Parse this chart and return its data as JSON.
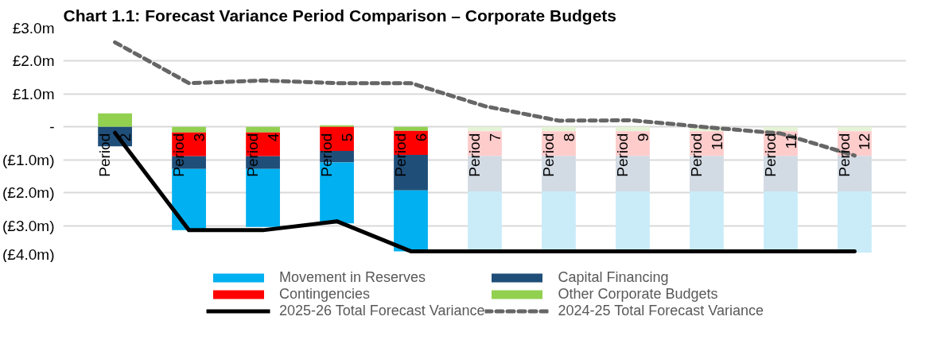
{
  "chart_data": {
    "type": "bar",
    "stacked": true,
    "title": "Chart 1.1: Forecast Variance Period Comparison – Corporate Budgets",
    "categories": [
      "Period 2",
      "Period 3",
      "Period 4",
      "Period 5",
      "Period 6",
      "Period 7",
      "Period 8",
      "Period 9",
      "Period 10",
      "Period 11",
      "Period 12"
    ],
    "series": [
      {
        "name": "Other Corporate Budgets",
        "color": "#92d050",
        "colors": [
          "#92d050",
          "#92d050",
          "#92d050",
          "#92d050",
          "#92d050",
          "#e5f3d6",
          "#e5f3d6",
          "#e5f3d6",
          "#e5f3d6",
          "#e5f3d6",
          "#e5f3d6"
        ],
        "values": [
          0.41,
          -0.17,
          -0.17,
          0.05,
          -0.12,
          -0.13,
          -0.13,
          -0.13,
          -0.13,
          -0.13,
          -0.13
        ]
      },
      {
        "name": "Contingencies",
        "color": "#ff0000",
        "colors": [
          "#ff0000",
          "#ff0000",
          "#ff0000",
          "#ff0000",
          "#ff0000",
          "#ffcccc",
          "#ffcccc",
          "#ffcccc",
          "#ffcccc",
          "#ffcccc",
          "#ffcccc"
        ],
        "values": [
          null,
          -0.72,
          -0.72,
          -0.73,
          -0.73,
          -0.75,
          -0.75,
          -0.75,
          -0.75,
          -0.75,
          -0.75
        ]
      },
      {
        "name": "Capital Financing",
        "color": "#1f4e79",
        "colors": [
          "#1f4e79",
          "#1f4e79",
          "#1f4e79",
          "#1f4e79",
          "#1f4e79",
          "#d2dae3",
          "#d2dae3",
          "#d2dae3",
          "#d2dae3",
          "#d2dae3",
          "#d2dae3"
        ],
        "values": [
          -0.59,
          -0.39,
          -0.39,
          -0.35,
          -1.08,
          -1.08,
          -1.08,
          -1.08,
          -1.08,
          -1.08,
          -1.08
        ]
      },
      {
        "name": "Movement in Reserves",
        "color": "#00b0f0",
        "colors": [
          "#00b0f0",
          "#00b0f0",
          "#00b0f0",
          "#00b0f0",
          "#00b0f0",
          "#c9ecf8",
          "#c9ecf8",
          "#c9ecf8",
          "#c9ecf8",
          "#c9ecf8",
          "#c9ecf8"
        ],
        "values": [
          null,
          -1.86,
          -1.76,
          -1.85,
          -1.85,
          -1.8,
          -1.8,
          -1.8,
          -1.8,
          -1.8,
          -1.86
        ]
      },
      {
        "name": "2025-26 Total Forecast Variance",
        "type": "line",
        "line_style": "solid",
        "color": "#000000",
        "values": [
          -0.18,
          -3.14,
          -3.14,
          -2.87,
          -3.78,
          -3.78,
          -3.78,
          -3.78,
          -3.78,
          -3.78,
          -3.78
        ]
      },
      {
        "name": "2024-25 Total Forecast Variance",
        "type": "line",
        "line_style": "dashed",
        "color": "#666666",
        "values": [
          2.57,
          1.33,
          1.41,
          1.33,
          1.33,
          0.63,
          0.19,
          0.2,
          -0.01,
          -0.2,
          -0.87
        ]
      }
    ],
    "ylim": [
      -4.0,
      3.0
    ],
    "yticks": [
      {
        "value": 3.0,
        "label": "£3.0m"
      },
      {
        "value": 2.0,
        "label": "£2.0m"
      },
      {
        "value": 1.0,
        "label": "£1.0m"
      },
      {
        "value": 0,
        "label": "-"
      },
      {
        "value": -1.0,
        "label": "(£1.0m)"
      },
      {
        "value": -2.0,
        "label": "(£2.0m)"
      },
      {
        "value": -3.0,
        "label": "(£3.0m)"
      },
      {
        "value": -4.0,
        "label": "(£4.0m)"
      }
    ],
    "grid": "y",
    "legend": "bottom"
  }
}
